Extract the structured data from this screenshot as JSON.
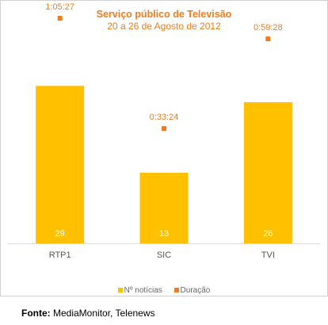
{
  "chart_data": {
    "type": "bar",
    "title": "Serviço público de Televisão",
    "subtitle": "20 a 26 de Agosto de 2012",
    "categories": [
      "RTP1",
      "SIC",
      "TVI"
    ],
    "series": [
      {
        "name": "Nº notícias",
        "type": "bar",
        "values": [
          29,
          13,
          26
        ],
        "labels": [
          "29",
          "13",
          "26"
        ],
        "color": "#ffc000"
      },
      {
        "name": "Duração",
        "type": "scatter",
        "values": [
          "1:05:27",
          "0:33:24",
          "0:59:28"
        ],
        "seconds": [
          3927,
          2004,
          3568
        ],
        "color": "#ee7d1c"
      }
    ],
    "legend_position": "bottom",
    "grid": false
  },
  "source": {
    "label": "Fonte:",
    "text": "MediaMonitor, Telenews"
  }
}
